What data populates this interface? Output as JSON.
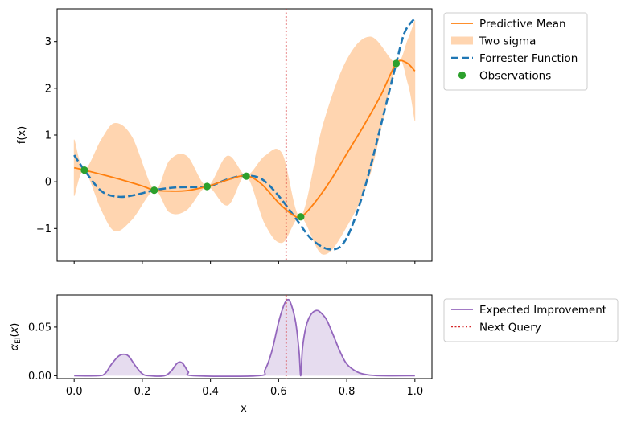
{
  "chart_data": [
    {
      "type": "line",
      "ylabel": "f(x)",
      "xlim": [
        -0.05,
        1.05
      ],
      "ylim": [
        -1.7,
        3.7
      ],
      "xticks": [
        0.0,
        0.2,
        0.4,
        0.6,
        0.8,
        1.0
      ],
      "xtick_labels_shown": false,
      "yticks": [
        -1,
        0,
        1,
        2,
        3
      ],
      "ytick_labels": [
        "−1",
        "0",
        "1",
        "2",
        "3"
      ],
      "legend_position": "outside-right-top",
      "series": [
        {
          "name": "Predictive Mean",
          "kind": "line",
          "color": "#ff7f0e",
          "x": [
            0.0,
            0.03,
            0.1,
            0.15,
            0.2,
            0.235,
            0.28,
            0.33,
            0.39,
            0.45,
            0.505,
            0.55,
            0.6,
            0.64,
            0.665,
            0.7,
            0.75,
            0.8,
            0.85,
            0.9,
            0.945,
            0.975,
            1.0
          ],
          "y": [
            0.3,
            0.25,
            0.12,
            0.02,
            -0.09,
            -0.18,
            -0.2,
            -0.19,
            -0.1,
            0.04,
            0.13,
            -0.05,
            -0.45,
            -0.7,
            -0.75,
            -0.5,
            0.0,
            0.6,
            1.2,
            1.85,
            2.53,
            2.55,
            2.37
          ]
        },
        {
          "name": "Two sigma",
          "kind": "band",
          "color": "#ffd5b0",
          "x": [
            0.0,
            0.03,
            0.08,
            0.12,
            0.17,
            0.235,
            0.28,
            0.33,
            0.39,
            0.45,
            0.505,
            0.56,
            0.61,
            0.665,
            0.73,
            0.8,
            0.87,
            0.945,
            0.98,
            1.0
          ],
          "lower": [
            -0.3,
            0.25,
            -0.6,
            -1.05,
            -0.8,
            -0.18,
            -0.65,
            -0.6,
            -0.1,
            -0.5,
            0.13,
            -0.9,
            -1.3,
            -0.75,
            -1.55,
            -0.95,
            0.2,
            2.53,
            2.1,
            1.3
          ],
          "upper": [
            0.9,
            0.25,
            0.9,
            1.25,
            0.95,
            -0.18,
            0.45,
            0.55,
            -0.1,
            0.55,
            0.13,
            0.55,
            0.6,
            -0.75,
            1.2,
            2.6,
            3.1,
            2.53,
            3.05,
            3.45
          ]
        },
        {
          "name": "Forrester Function",
          "kind": "dashed-line",
          "color": "#1f77b4",
          "x": [
            0.0,
            0.03,
            0.08,
            0.13,
            0.18,
            0.235,
            0.3,
            0.39,
            0.45,
            0.5,
            0.55,
            0.6,
            0.65,
            0.7,
            0.757,
            0.8,
            0.85,
            0.9,
            0.945,
            0.97,
            1.0
          ],
          "y": [
            0.57,
            0.25,
            -0.2,
            -0.32,
            -0.28,
            -0.18,
            -0.12,
            -0.1,
            0.05,
            0.13,
            0.06,
            -0.3,
            -0.78,
            -1.25,
            -1.45,
            -1.2,
            -0.2,
            1.2,
            2.53,
            3.2,
            3.5
          ]
        },
        {
          "name": "Observations",
          "kind": "scatter",
          "color": "#2ca02c",
          "x": [
            0.03,
            0.235,
            0.39,
            0.505,
            0.665,
            0.945
          ],
          "y": [
            0.25,
            -0.18,
            -0.1,
            0.12,
            -0.75,
            2.53
          ]
        }
      ],
      "vline": {
        "x": 0.622,
        "color": "#d62728",
        "style": "dotted"
      }
    },
    {
      "type": "area",
      "xlabel": "x",
      "ylabel": "αEI(x)",
      "xlim": [
        -0.05,
        1.05
      ],
      "ylim": [
        -0.003,
        0.083
      ],
      "xticks": [
        0.0,
        0.2,
        0.4,
        0.6,
        0.8,
        1.0
      ],
      "xtick_labels": [
        "0.0",
        "0.2",
        "0.4",
        "0.6",
        "0.8",
        "1.0"
      ],
      "yticks": [
        0.0,
        0.05
      ],
      "ytick_labels": [
        "0.00",
        "0.05"
      ],
      "legend_position": "outside-right-top",
      "series": [
        {
          "name": "Expected Improvement",
          "kind": "line-with-fill",
          "color": "#9467bd",
          "fill": "#e6dcef",
          "x": [
            0.0,
            0.07,
            0.09,
            0.11,
            0.13,
            0.145,
            0.16,
            0.18,
            0.2,
            0.22,
            0.265,
            0.285,
            0.3,
            0.31,
            0.32,
            0.335,
            0.35,
            0.54,
            0.56,
            0.58,
            0.6,
            0.615,
            0.625,
            0.635,
            0.65,
            0.66,
            0.665,
            0.67,
            0.68,
            0.69,
            0.7,
            0.71,
            0.72,
            0.74,
            0.76,
            0.78,
            0.8,
            0.83,
            0.86,
            0.9,
            1.0
          ],
          "y": [
            0.0,
            0.0,
            0.002,
            0.012,
            0.02,
            0.022,
            0.02,
            0.01,
            0.002,
            0.0,
            0.0,
            0.005,
            0.012,
            0.014,
            0.012,
            0.004,
            0.0,
            0.0,
            0.006,
            0.025,
            0.055,
            0.072,
            0.078,
            0.075,
            0.055,
            0.025,
            0.0,
            0.028,
            0.05,
            0.06,
            0.065,
            0.067,
            0.066,
            0.058,
            0.042,
            0.025,
            0.012,
            0.004,
            0.001,
            0.0,
            0.0
          ]
        }
      ],
      "vline": {
        "name": "Next Query",
        "x": 0.622,
        "color": "#d62728",
        "style": "dotted"
      }
    }
  ],
  "legends": {
    "top": [
      {
        "label": "Predictive Mean",
        "swatch": "line",
        "color": "#ff7f0e"
      },
      {
        "label": "Two sigma",
        "swatch": "patch",
        "color": "#ffd5b0"
      },
      {
        "label": "Forrester Function",
        "swatch": "dashed",
        "color": "#1f77b4"
      },
      {
        "label": "Observations",
        "swatch": "dot",
        "color": "#2ca02c"
      }
    ],
    "bottom": [
      {
        "label": "Expected Improvement",
        "swatch": "line",
        "color": "#9467bd"
      },
      {
        "label": "Next Query",
        "swatch": "dotted",
        "color": "#d62728"
      }
    ]
  }
}
